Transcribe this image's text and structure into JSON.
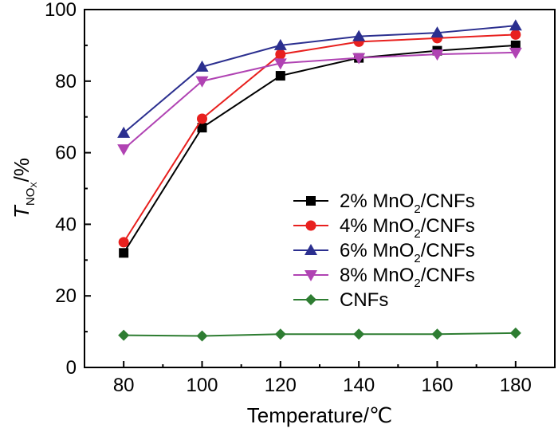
{
  "chart_data": {
    "type": "line",
    "x": [
      80,
      100,
      120,
      140,
      160,
      180
    ],
    "xlim": [
      70,
      190
    ],
    "ylim": [
      0,
      100
    ],
    "x_ticks": [
      "80",
      "100",
      "120",
      "140",
      "160",
      "180"
    ],
    "y_ticks": [
      "0",
      "20",
      "40",
      "60",
      "80",
      "100"
    ],
    "xlabel": "Temperature/℃",
    "ylabel": {
      "main": "T",
      "sub": "NO",
      "subsub": "X",
      "suffix": "/%"
    },
    "grid": false,
    "legend_position": "lower-right",
    "series": [
      {
        "name": "2% MnO2/CNFs",
        "label_prefix": "2% MnO",
        "label_sub": "2",
        "label_suffix": "/CNFs",
        "color": "#000000",
        "marker": "square",
        "values": [
          32,
          67,
          81.5,
          86.5,
          88.5,
          90
        ]
      },
      {
        "name": "4% MnO2/CNFs",
        "label_prefix": "4% MnO",
        "label_sub": "2",
        "label_suffix": "/CNFs",
        "color": "#e8201e",
        "marker": "circle",
        "values": [
          35,
          69.5,
          87.5,
          91,
          92,
          93
        ]
      },
      {
        "name": "6% MnO2/CNFs",
        "label_prefix": "6% MnO",
        "label_sub": "2",
        "label_suffix": "/CNFs",
        "color": "#2b2f8f",
        "marker": "triangle-up",
        "values": [
          65.5,
          84,
          90,
          92.5,
          93.5,
          95.5
        ]
      },
      {
        "name": "8% MnO2/CNFs",
        "label_prefix": "8% MnO",
        "label_sub": "2",
        "label_suffix": "/CNFs",
        "color": "#b043b3",
        "marker": "triangle-down",
        "values": [
          61,
          80,
          85,
          86.5,
          87.5,
          88
        ]
      },
      {
        "name": "CNFs",
        "label_prefix": "CNFs",
        "label_sub": "",
        "label_suffix": "",
        "color": "#2e7d32",
        "marker": "diamond",
        "values": [
          9,
          8.8,
          9.3,
          9.3,
          9.3,
          9.6
        ]
      }
    ]
  }
}
